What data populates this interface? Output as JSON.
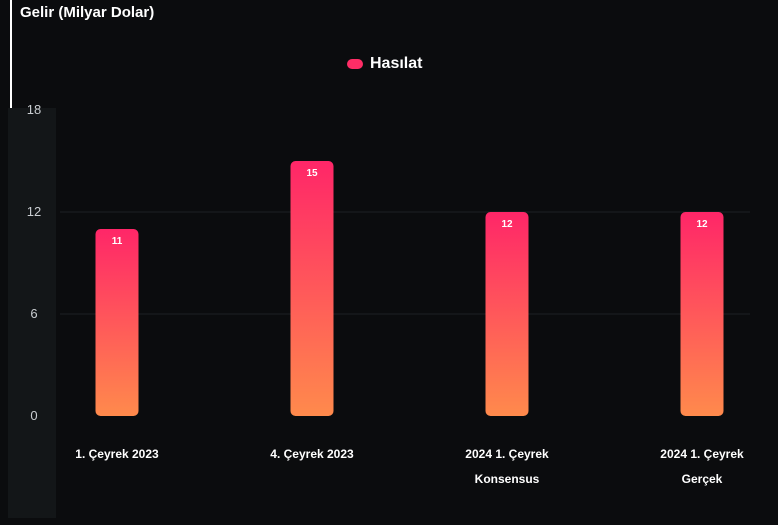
{
  "chart_data": {
    "type": "bar",
    "title": "Gelir (Milyar Dolar)",
    "categories": [
      [
        "1. Çeyrek 2023"
      ],
      [
        "4. Çeyrek 2023"
      ],
      [
        "2024 1. Çeyrek",
        "Konsensus"
      ],
      [
        "2024 1. Çeyrek",
        "Gerçek"
      ]
    ],
    "series": [
      {
        "name": "Hasılat",
        "values": [
          11,
          15,
          12,
          12
        ]
      }
    ],
    "data_labels": [
      "11",
      "15",
      "12",
      "12"
    ],
    "y_ticks": [
      "0",
      "6",
      "12",
      "18"
    ],
    "ylim": [
      0,
      18
    ],
    "grid": true,
    "legend_position": "top-center",
    "colors": {
      "bar_top": "#ff2668",
      "bar_bottom": "#ff8a4c",
      "legend": "#ff2d66",
      "grid": "#1e2124",
      "tick_text": "#c9cdd1",
      "label_text": "#ffffff"
    }
  }
}
